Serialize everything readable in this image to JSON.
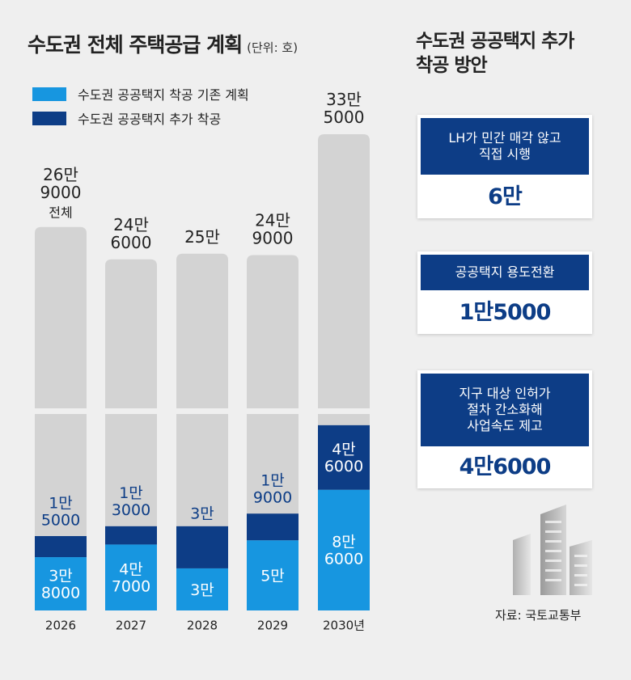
{
  "chart_data": {
    "type": "bar",
    "title": "수도권 전체 주택공급 계획",
    "unit": "(단위: 호)",
    "categories": [
      "2026",
      "2027",
      "2028",
      "2029",
      "2030년"
    ],
    "totals": [
      269000,
      246000,
      250000,
      249000,
      335000
    ],
    "total_labels": [
      [
        "26만",
        "9000",
        "전체"
      ],
      [
        "24만",
        "6000"
      ],
      [
        "25만"
      ],
      [
        "24만",
        "9000"
      ],
      [
        "33만",
        "5000"
      ]
    ],
    "series": [
      {
        "name": "수도권 공공택지 착공 기존 계획",
        "color": "#1796e0",
        "values": [
          38000,
          47000,
          30000,
          50000,
          86000
        ],
        "labels": [
          [
            "3만",
            "8000"
          ],
          [
            "4만",
            "7000"
          ],
          [
            "3만"
          ],
          [
            "5만"
          ],
          [
            "8만",
            "6000"
          ]
        ]
      },
      {
        "name": "수도권 공공택지 추가 착공",
        "color": "#0d3d86",
        "values": [
          15000,
          13000,
          30000,
          19000,
          46000
        ],
        "labels": [
          [
            "1만",
            "5000"
          ],
          [
            "1만",
            "3000"
          ],
          [
            "3만"
          ],
          [
            "1만",
            "9000"
          ],
          [
            "4만",
            "6000"
          ]
        ]
      }
    ],
    "total_color": "#d3d3d3",
    "axis_break": true
  },
  "side": {
    "title_line1": "수도권 공공택지 추가",
    "title_line2": "착공 방안",
    "cards": [
      {
        "header": [
          "LH가 민간 매각 않고",
          "직접 시행"
        ],
        "value": "6만"
      },
      {
        "header": [
          "공공택지 용도전환"
        ],
        "value": "1만5000"
      },
      {
        "header": [
          "지구 대상 인허가",
          "절차 간소화해",
          "사업속도 제고"
        ],
        "value": "4만6000"
      }
    ]
  },
  "source": "자료: 국토교통부"
}
